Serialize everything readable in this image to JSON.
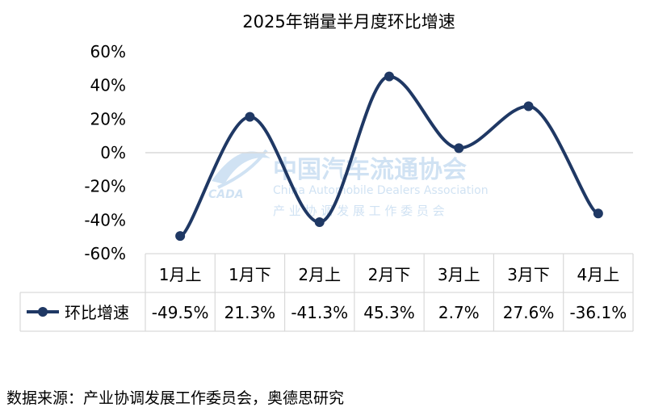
{
  "chart_data": {
    "type": "line",
    "title": "2025年销量半月度环比增速",
    "categories": [
      "1月上",
      "1月下",
      "2月上",
      "2月下",
      "3月上",
      "3月下",
      "4月上"
    ],
    "series": [
      {
        "name": "环比增速",
        "values": [
          -49.5,
          21.3,
          -41.3,
          45.3,
          2.7,
          27.6,
          -36.1
        ],
        "labels": [
          "-49.5%",
          "21.3%",
          "-41.3%",
          "45.3%",
          "2.7%",
          "27.6%",
          "-36.1%"
        ],
        "color": "#1f3864"
      }
    ],
    "ylim": [
      -60,
      60
    ],
    "yticks": [
      60,
      40,
      20,
      0,
      -20,
      -40,
      -60
    ],
    "ytick_labels": [
      "60%",
      "40%",
      "20%",
      "0%",
      "-20%",
      "-40%",
      "-60%"
    ],
    "grid": false,
    "zero_line": true,
    "legend": "data-table-left"
  },
  "watermark": {
    "name_cn": "中国汽车流通协会",
    "name_en": "China Automobile Dealers Association",
    "subtitle_cn": "产 业 协 调 发 展 工 作 委 员 会",
    "logo_text": "CADA"
  },
  "source_text": "数据来源：产业协调发展工作委员会，奥德思研究"
}
